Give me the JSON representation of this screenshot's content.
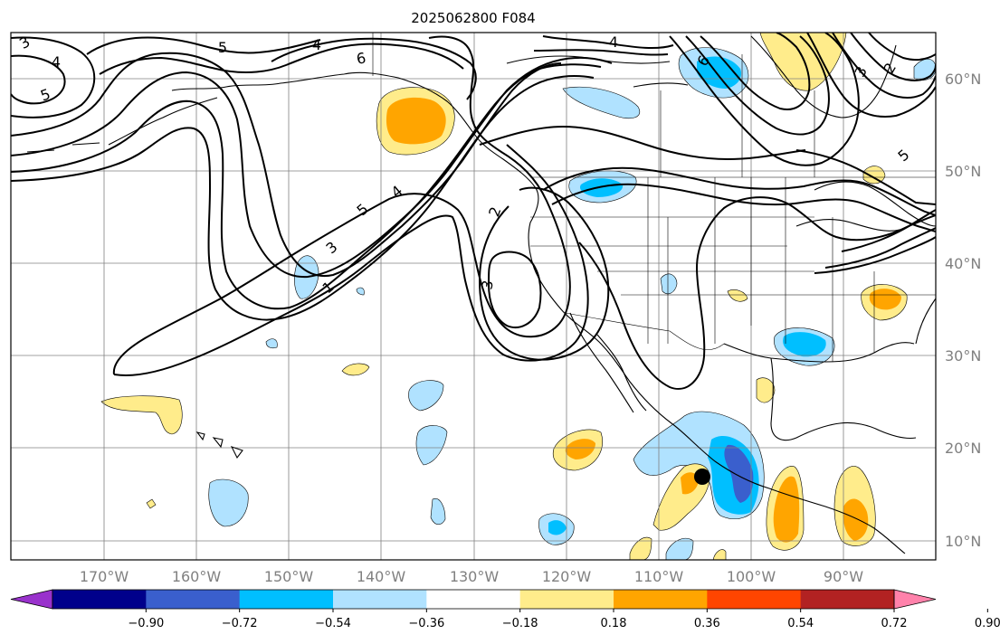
{
  "title": "2025062800 F084",
  "map": {
    "lon_labels": [
      "170°W",
      "160°W",
      "150°W",
      "140°W",
      "130°W",
      "120°W",
      "110°W",
      "100°W",
      "90°W"
    ],
    "lat_labels": [
      "60°N",
      "50°N",
      "40°N",
      "30°N",
      "20°N",
      "10°N"
    ],
    "contour_labels": [
      "1",
      "2",
      "3",
      "4",
      "5",
      "6"
    ],
    "marker": "storm-center-dot"
  },
  "colorbar": {
    "ticks": [
      "−0.90",
      "−0.72",
      "−0.54",
      "−0.36",
      "−0.18",
      "0.18",
      "0.36",
      "0.54",
      "0.72",
      "0.90"
    ],
    "colors": [
      "#9932cc",
      "#00008b",
      "#3a5fcd",
      "#00bfff",
      "#b0e2ff",
      "#ffffff",
      "#ffec8b",
      "#ffa500",
      "#ff4500",
      "#b22222",
      "#ff82ab"
    ]
  }
}
